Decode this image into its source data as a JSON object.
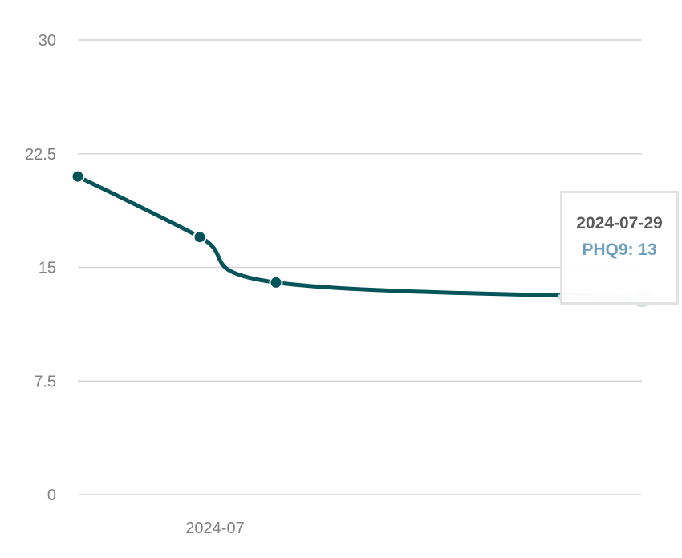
{
  "chart_data": {
    "type": "line",
    "series": [
      {
        "name": "PHQ9",
        "color": "#04545a",
        "points": [
          {
            "x": "2024-06-22",
            "y": 21
          },
          {
            "x": "2024-06-30",
            "y": 17
          },
          {
            "x": "2024-07-05",
            "y": 14
          },
          {
            "x": "2024-07-29",
            "y": 13
          }
        ]
      }
    ],
    "x_ticks": [
      "2024-07"
    ],
    "y_ticks": [
      "0",
      "7.5",
      "15",
      "22.5",
      "30"
    ],
    "ylim": [
      0,
      30
    ],
    "grid": true,
    "legend": "none",
    "tooltip": {
      "date": "2024-07-29",
      "label": "PHQ9: 13",
      "label_color": "#6b9dbf",
      "highlight_color": "#cfe0e0"
    }
  }
}
